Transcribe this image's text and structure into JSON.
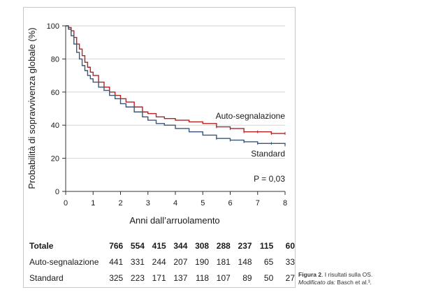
{
  "chart_data": {
    "type": "line",
    "title": "",
    "xlabel": "Anni dall’arruolamento",
    "ylabel": "Probabilità di sopravvivenza globale (%)",
    "xlim": [
      0,
      8
    ],
    "ylim": [
      0,
      100
    ],
    "x_ticks": [
      "0",
      "1",
      "2",
      "3",
      "4",
      "5",
      "6",
      "7",
      "8"
    ],
    "y_ticks": [
      "0",
      "20",
      "40",
      "60",
      "80",
      "100"
    ],
    "grid": "horizontal",
    "series": [
      {
        "name": "Auto-segnalazione",
        "color": "#b22222",
        "points": [
          [
            0,
            100
          ],
          [
            0.1,
            99
          ],
          [
            0.2,
            97
          ],
          [
            0.3,
            93
          ],
          [
            0.4,
            89
          ],
          [
            0.5,
            86
          ],
          [
            0.6,
            82
          ],
          [
            0.7,
            78
          ],
          [
            0.8,
            75
          ],
          [
            0.9,
            72
          ],
          [
            1,
            70
          ],
          [
            1.2,
            66
          ],
          [
            1.4,
            63
          ],
          [
            1.6,
            60
          ],
          [
            1.8,
            58
          ],
          [
            2,
            56
          ],
          [
            2.2,
            54
          ],
          [
            2.5,
            51
          ],
          [
            2.8,
            48
          ],
          [
            3,
            47
          ],
          [
            3.3,
            45
          ],
          [
            3.6,
            44
          ],
          [
            4,
            43
          ],
          [
            4.5,
            42
          ],
          [
            5,
            41
          ],
          [
            5.5,
            39
          ],
          [
            6,
            38
          ],
          [
            6.5,
            36
          ],
          [
            7,
            36
          ],
          [
            7.5,
            35
          ],
          [
            8,
            35
          ]
        ]
      },
      {
        "name": "Standard",
        "color": "#3a5677",
        "points": [
          [
            0,
            100
          ],
          [
            0.1,
            98
          ],
          [
            0.2,
            94
          ],
          [
            0.3,
            89
          ],
          [
            0.4,
            84
          ],
          [
            0.5,
            80
          ],
          [
            0.6,
            76
          ],
          [
            0.7,
            73
          ],
          [
            0.8,
            70
          ],
          [
            0.9,
            68
          ],
          [
            1,
            66
          ],
          [
            1.2,
            63
          ],
          [
            1.4,
            61
          ],
          [
            1.6,
            58
          ],
          [
            1.8,
            56
          ],
          [
            2,
            53
          ],
          [
            2.2,
            51
          ],
          [
            2.5,
            48
          ],
          [
            2.8,
            45
          ],
          [
            3,
            43
          ],
          [
            3.3,
            41
          ],
          [
            3.6,
            40
          ],
          [
            4,
            38
          ],
          [
            4.5,
            36
          ],
          [
            5,
            34
          ],
          [
            5.5,
            32
          ],
          [
            6,
            31
          ],
          [
            6.5,
            30
          ],
          [
            7,
            29
          ],
          [
            7.5,
            29
          ],
          [
            8,
            28
          ]
        ]
      }
    ],
    "annotations": [
      "P = 0,03"
    ]
  },
  "risk_table": {
    "times": [
      "0",
      "1",
      "2",
      "3",
      "4",
      "5",
      "6",
      "7",
      "8"
    ],
    "rows": [
      {
        "label": "Totale",
        "bold": true,
        "values": [
          "766",
          "554",
          "415",
          "344",
          "308",
          "288",
          "237",
          "115",
          "60"
        ]
      },
      {
        "label": "Auto-segnalazione",
        "bold": false,
        "values": [
          "441",
          "331",
          "244",
          "207",
          "190",
          "181",
          "148",
          "65",
          "33"
        ]
      },
      {
        "label": "Standard",
        "bold": false,
        "values": [
          "325",
          "223",
          "171",
          "137",
          "118",
          "107",
          "89",
          "50",
          "27"
        ]
      }
    ]
  },
  "caption": {
    "figure_label": "Figura 2",
    "text": ". I risultati sulla OS.",
    "modified_label": "Modificato da:",
    "source": " Basch et al.³."
  }
}
